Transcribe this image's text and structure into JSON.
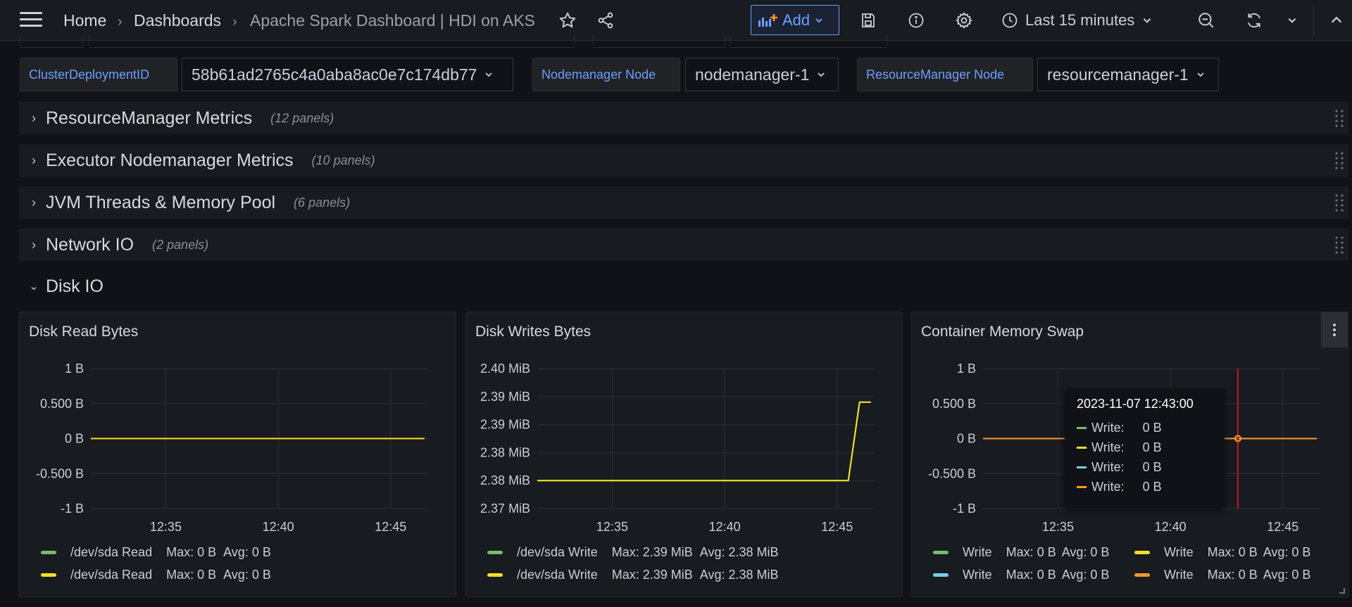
{
  "nav": {
    "breadcrumb": [
      "Home",
      "Dashboards",
      "Apache Spark Dashboard | HDI on AKS"
    ],
    "add_label": "Add",
    "time_range": "Last 15 minutes"
  },
  "variables": [
    {
      "label": "ClusterDeploymentID",
      "value": "58b61ad2765c4a0aba8ac0e7c174db77"
    },
    {
      "label": "Nodemanager Node",
      "value": "nodemanager-1"
    },
    {
      "label": "ResourceManager Node",
      "value": "resourcemanager-1"
    }
  ],
  "rows": [
    {
      "title": "ResourceManager Metrics",
      "count": "(12 panels)",
      "collapsed": true
    },
    {
      "title": "Executor Nodemanager Metrics",
      "count": "(10 panels)",
      "collapsed": true
    },
    {
      "title": "JVM Threads & Memory Pool",
      "count": "(6 panels)",
      "collapsed": true
    },
    {
      "title": "Network IO",
      "count": "(2 panels)",
      "collapsed": true
    },
    {
      "title": "Disk IO",
      "count": "",
      "collapsed": false
    }
  ],
  "colors": {
    "green": "#73bf69",
    "yellow": "#fade2a",
    "blue": "#5794f2",
    "cyan": "#8ab8ff",
    "orange": "#ff9830",
    "light_blue": "#73d0e8",
    "red_line": "#c4162a"
  },
  "chart_data": [
    {
      "type": "line",
      "title": "Disk Read Bytes",
      "x_ticks": [
        "12:35",
        "12:40",
        "12:45"
      ],
      "y_ticks": [
        "1 B",
        "0.500 B",
        "0 B",
        "-0.500 B",
        "-1 B"
      ],
      "ylim": [
        -1,
        1
      ],
      "xlim": [
        "12:31:40",
        "12:46:40"
      ],
      "series": [
        {
          "name": "/dev/sda Read",
          "color": "#73bf69",
          "max": "0 B",
          "avg": "0 B",
          "x": [
            "12:31:40",
            "12:46:30"
          ],
          "values": [
            0,
            0
          ]
        },
        {
          "name": "/dev/sda Read",
          "color": "#fade2a",
          "max": "0 B",
          "avg": "0 B",
          "x": [
            "12:31:40",
            "12:46:30"
          ],
          "values": [
            0,
            0
          ]
        }
      ]
    },
    {
      "type": "line",
      "title": "Disk Writes Bytes",
      "x_ticks": [
        "12:35",
        "12:40",
        "12:45"
      ],
      "y_ticks": [
        "2.40 MiB",
        "2.39 MiB",
        "2.39 MiB",
        "2.38 MiB",
        "2.38 MiB",
        "2.37 MiB"
      ],
      "ylim": [
        2.374,
        2.399
      ],
      "xlim": [
        "12:31:40",
        "12:46:40"
      ],
      "series": [
        {
          "name": "/dev/sda Write",
          "color": "#73bf69",
          "max": "2.39 MiB",
          "avg": "2.38 MiB",
          "x": [
            "12:31:40",
            "12:45:30",
            "12:46:00",
            "12:46:30"
          ],
          "values": [
            2.379,
            2.379,
            2.393,
            2.393
          ]
        },
        {
          "name": "/dev/sda Write",
          "color": "#fade2a",
          "max": "2.39 MiB",
          "avg": "2.38 MiB",
          "x": [
            "12:31:40",
            "12:45:30",
            "12:46:00",
            "12:46:30"
          ],
          "values": [
            2.379,
            2.379,
            2.393,
            2.393
          ]
        }
      ]
    },
    {
      "type": "line",
      "title": "Container Memory Swap",
      "x_ticks": [
        "12:35",
        "12:40",
        "12:45"
      ],
      "y_ticks": [
        "1 B",
        "0.500 B",
        "0 B",
        "-0.500 B",
        "-1 B"
      ],
      "ylim": [
        -1,
        1
      ],
      "xlim": [
        "12:31:40",
        "12:46:40"
      ],
      "series": [
        {
          "name": "Write",
          "color": "#73bf69",
          "max": "0 B",
          "avg": "0 B",
          "x": [
            "12:31:40",
            "12:46:30"
          ],
          "values": [
            0,
            0
          ]
        },
        {
          "name": "Write",
          "color": "#fade2a",
          "max": "0 B",
          "avg": "0 B",
          "x": [
            "12:31:40",
            "12:46:30"
          ],
          "values": [
            0,
            0
          ]
        },
        {
          "name": "Write",
          "color": "#73d0e8",
          "max": "0 B",
          "avg": "0 B",
          "x": [
            "12:31:40",
            "12:46:30"
          ],
          "values": [
            0,
            0
          ]
        },
        {
          "name": "Write",
          "color": "#ff9830",
          "max": "0 B",
          "avg": "0 B",
          "x": [
            "12:31:40",
            "12:46:30"
          ],
          "values": [
            0,
            0
          ]
        }
      ],
      "tooltip": {
        "time": "2023-11-07 12:43:00",
        "cursor_x": "12:43:00",
        "entries": [
          {
            "label": "Write:",
            "value": "0 B",
            "color": "#73bf69"
          },
          {
            "label": "Write:",
            "value": "0 B",
            "color": "#fade2a"
          },
          {
            "label": "Write:",
            "value": "0 B",
            "color": "#73d0e8"
          },
          {
            "label": "Write:",
            "value": "0 B",
            "color": "#ff9830"
          }
        ]
      }
    }
  ]
}
